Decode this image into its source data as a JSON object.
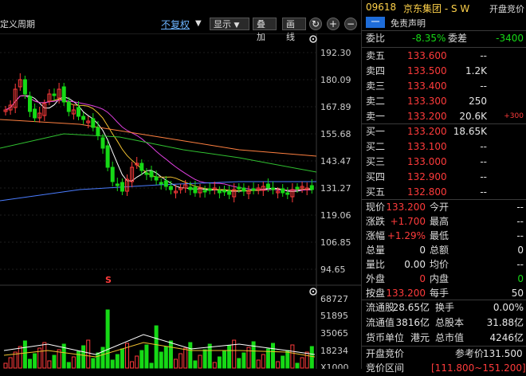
{
  "toolbar": {
    "period_label": "定义周期",
    "rights_label": "不复权",
    "display_label": "显示",
    "overlay_label": "叠加",
    "draw_label": "画线",
    "refresh_symbol": "↻",
    "plus_symbol": "+",
    "minus_symbol": "−"
  },
  "price_axis": [
    "192.30",
    "180.09",
    "167.89",
    "155.68",
    "143.47",
    "131.27",
    "119.06",
    "106.85",
    "94.65"
  ],
  "volume_axis": [
    "68727",
    "51895",
    "35065",
    "18234",
    "X1000"
  ],
  "chart_marker": "S",
  "header": {
    "code": "09618",
    "name": "京东集团 - S W",
    "auction_label": "开盘竞价",
    "badge": "一",
    "disclaimer": "免责声明"
  },
  "weibi": {
    "label1": "委比",
    "value1": "-8.35%",
    "label2": "委差",
    "value2": "-3400"
  },
  "asks": [
    {
      "label": "卖五",
      "price": "133.600",
      "vol": "--",
      "chg": ""
    },
    {
      "label": "卖四",
      "price": "133.500",
      "vol": "1.2K",
      "chg": ""
    },
    {
      "label": "卖三",
      "price": "133.400",
      "vol": "--",
      "chg": ""
    },
    {
      "label": "卖二",
      "price": "133.300",
      "vol": "250",
      "chg": ""
    },
    {
      "label": "卖一",
      "price": "133.200",
      "vol": "20.6K",
      "chg": "+300"
    }
  ],
  "bids": [
    {
      "label": "买一",
      "price": "133.200",
      "vol": "18.65K"
    },
    {
      "label": "买二",
      "price": "133.100",
      "vol": "--"
    },
    {
      "label": "买三",
      "price": "133.000",
      "vol": "--"
    },
    {
      "label": "买四",
      "price": "132.900",
      "vol": "--"
    },
    {
      "label": "买五",
      "price": "132.800",
      "vol": "--"
    }
  ],
  "stats": [
    {
      "l1": "现价",
      "v1": "133.200",
      "c1": "red",
      "l2": "今开",
      "v2": "--",
      "c2": "wht"
    },
    {
      "l1": "涨跌",
      "v1": "+1.700",
      "c1": "red",
      "l2": "最高",
      "v2": "--",
      "c2": "wht"
    },
    {
      "l1": "涨幅",
      "v1": "+1.29%",
      "c1": "red",
      "l2": "最低",
      "v2": "--",
      "c2": "wht"
    },
    {
      "l1": "总量",
      "v1": "0",
      "c1": "wht",
      "l2": "总额",
      "v2": "0",
      "c2": "wht"
    },
    {
      "l1": "量比",
      "v1": "0.00",
      "c1": "wht",
      "l2": "均价",
      "v2": "--",
      "c2": "wht"
    },
    {
      "l1": "外盘",
      "v1": "0",
      "c1": "red",
      "l2": "内盘",
      "v2": "0",
      "c2": "green"
    },
    {
      "l1": "按盘",
      "v1": "133.200",
      "c1": "red",
      "l2": "每手",
      "v2": "50",
      "c2": "wht"
    }
  ],
  "stats2": [
    {
      "l1": "流通股",
      "v1": "28.65亿",
      "l2": "换手",
      "v2": "0.00%"
    },
    {
      "l1": "流通值",
      "v1": "3816亿",
      "l2": "总股本",
      "v2": "31.88亿"
    },
    {
      "l1": "货币单位",
      "v1": "港元",
      "l2": "总市值",
      "v2": "4246亿"
    }
  ],
  "auction": {
    "label": "开盘竞价",
    "ref_label": "参考价",
    "ref_value": "131.500",
    "range_label": "竞价区间",
    "range_value": "[111.800~151.200]"
  },
  "colors": {
    "up": "#ff3b3b",
    "down": "#16d916",
    "ma5": "#ffffff",
    "ma10": "#f2c230",
    "ma20": "#e040e0",
    "ma60": "#30c030",
    "ma120": "#ff8040",
    "ma250": "#4a7cff"
  }
}
